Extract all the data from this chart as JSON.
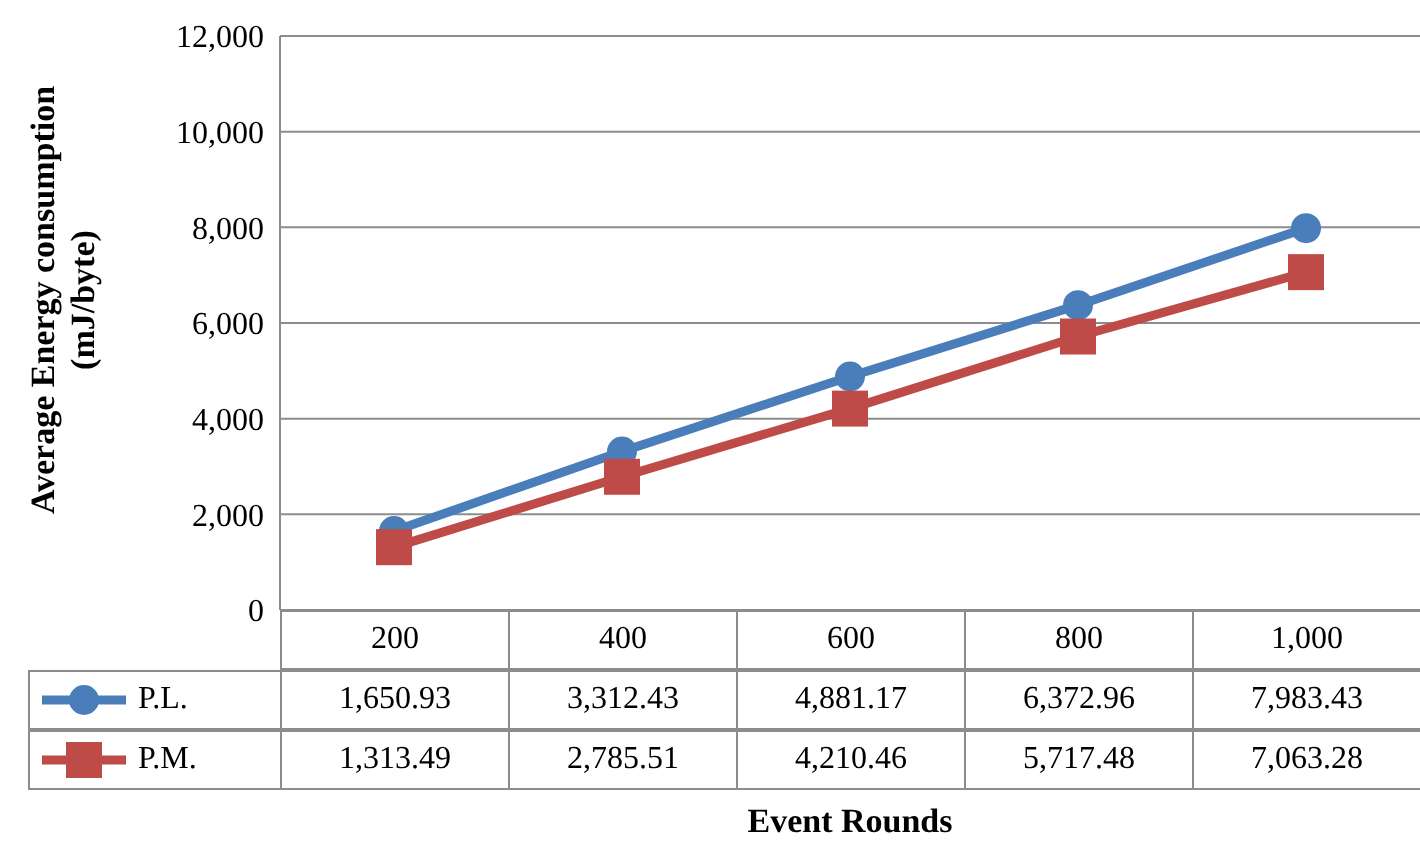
{
  "chart_data": {
    "type": "line",
    "xlabel": "Event Rounds",
    "ylabel": "Average Energy consumption (mJ/byte)",
    "categories": [
      "200",
      "400",
      "600",
      "800",
      "1,000"
    ],
    "series": [
      {
        "name": "P.L.",
        "color": "#4a7ebb",
        "marker": "circle",
        "values": [
          1650.93,
          3312.43,
          4881.17,
          6372.96,
          7983.43
        ],
        "value_labels": [
          "1,650.93",
          "3,312.43",
          "4,881.17",
          "6,372.96",
          "7,983.43"
        ]
      },
      {
        "name": "P.M.",
        "color": "#be4b48",
        "marker": "square",
        "values": [
          1313.49,
          2785.51,
          4210.46,
          5717.48,
          7063.28
        ],
        "value_labels": [
          "1,313.49",
          "2,785.51",
          "4,210.46",
          "5,717.48",
          "7,063.28"
        ]
      }
    ],
    "ylim": [
      0,
      12000
    ],
    "yticks": [
      0,
      {
        "value": 2000,
        "label": "2,000"
      },
      {
        "value": 4000,
        "label": "4,000"
      },
      {
        "value": 6000,
        "label": "6,000"
      },
      {
        "value": 8000,
        "label": "8,000"
      },
      {
        "value": 10000,
        "label": "10,000"
      },
      {
        "value": 12000,
        "label": "12,000"
      }
    ],
    "grid": "y",
    "legend": "bottom"
  }
}
